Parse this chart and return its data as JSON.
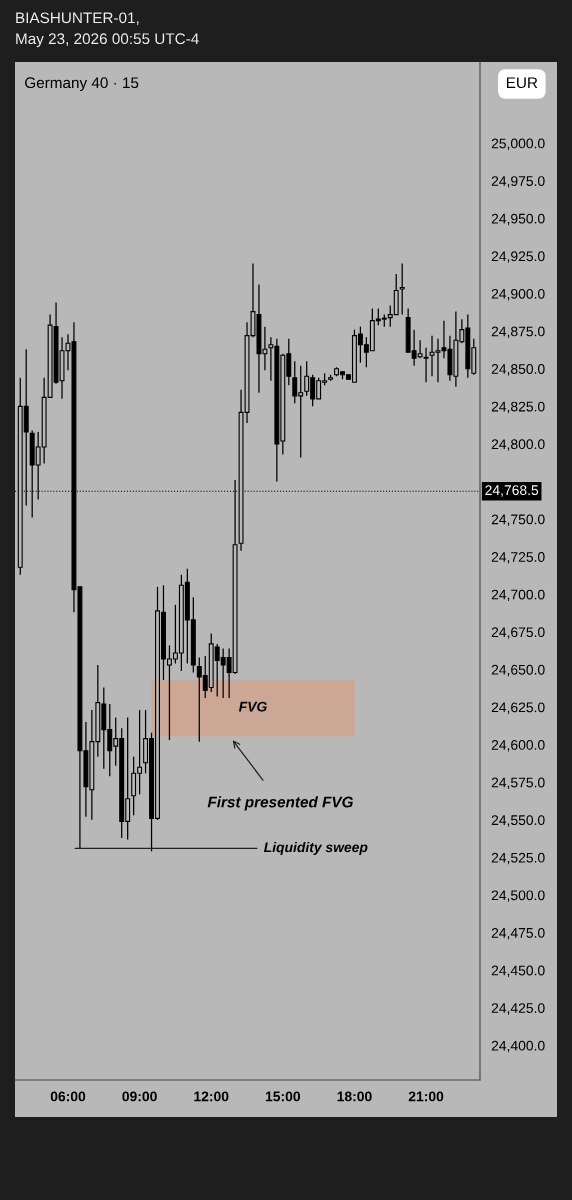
{
  "chart_data": {
    "type": "candlestick",
    "title": "Germany 40 · 15",
    "subtitle": "BIASHUNTER-01,\nMay 23, 2026 00:55 UTC-4",
    "x": [
      4.0,
      4.25,
      4.5,
      4.75,
      5.0,
      5.25,
      5.5,
      5.75,
      6.0,
      6.25,
      6.5,
      6.75,
      7.0,
      7.25,
      7.5,
      7.75,
      8.0,
      8.25,
      8.5,
      8.75,
      9.0,
      9.25,
      9.5,
      9.75,
      10.0,
      10.25,
      10.5,
      10.75,
      11.0,
      11.25,
      11.5,
      11.75,
      12.0,
      12.25,
      12.5,
      12.75,
      13.0,
      13.25,
      13.5,
      13.75,
      14.0,
      14.25,
      14.5,
      14.75,
      15.0,
      15.25,
      15.5,
      15.75,
      16.0,
      16.25,
      16.5,
      16.75,
      17.0,
      17.25,
      17.5,
      17.75,
      18.0,
      18.25,
      18.5,
      18.75,
      19.0,
      19.25,
      19.5,
      19.75,
      20.0,
      20.25,
      20.5,
      20.75,
      21.0,
      21.25,
      21.5,
      21.75,
      22.0,
      22.25,
      22.5,
      22.75,
      23.0
    ],
    "ohlc": [
      [
        24718,
        24844,
        24713,
        24825
      ],
      [
        24825,
        24863,
        24759,
        24808
      ],
      [
        24807,
        24809,
        24751,
        24786
      ],
      [
        24786,
        24808,
        24763,
        24798
      ],
      [
        24798,
        24844,
        24787,
        24831
      ],
      [
        24831,
        24886,
        24831,
        24879
      ],
      [
        24878,
        24894,
        24840,
        24841
      ],
      [
        24842,
        24871,
        24830,
        24862
      ],
      [
        24862,
        24873,
        24849,
        24867
      ],
      [
        24868,
        24881,
        24688,
        24703
      ],
      [
        24705,
        24705,
        24531,
        24596
      ],
      [
        24596,
        24615,
        24552,
        24572
      ],
      [
        24570,
        24623,
        24550,
        24602
      ],
      [
        24602,
        24653,
        24592,
        24628
      ],
      [
        24627,
        24638,
        24584,
        24610
      ],
      [
        24610,
        24627,
        24579,
        24596
      ],
      [
        24599,
        24618,
        24586,
        24604
      ],
      [
        24604,
        24611,
        24538,
        24549
      ],
      [
        24549,
        24618,
        24537,
        24564
      ],
      [
        24566,
        24592,
        24553,
        24581
      ],
      [
        24581,
        24623,
        24567,
        24585
      ],
      [
        24588,
        24623,
        24581,
        24604
      ],
      [
        24604,
        24608,
        24529,
        24551
      ],
      [
        24551,
        24705,
        24550,
        24689
      ],
      [
        24688,
        24706,
        24643,
        24657
      ],
      [
        24653,
        24666,
        24603,
        24657
      ],
      [
        24657,
        24693,
        24654,
        24661
      ],
      [
        24661,
        24713,
        24649,
        24706
      ],
      [
        24708,
        24717,
        24654,
        24683
      ],
      [
        24683,
        24698,
        24648,
        24653
      ],
      [
        24652,
        24658,
        24602,
        24645
      ],
      [
        24646,
        24659,
        24631,
        24636
      ],
      [
        24638,
        24674,
        24635,
        24667
      ],
      [
        24665,
        24667,
        24632,
        24656
      ],
      [
        24658,
        24664,
        24631,
        24653
      ],
      [
        24658,
        24664,
        24631,
        24648
      ],
      [
        24648,
        24776,
        24647,
        24733
      ],
      [
        24734,
        24836,
        24729,
        24821
      ],
      [
        24821,
        24881,
        24814,
        24872
      ],
      [
        24872,
        24920,
        24871,
        24888
      ],
      [
        24886,
        24906,
        24834,
        24860
      ],
      [
        24860,
        24878,
        24849,
        24863
      ],
      [
        24864,
        24871,
        24842,
        24866
      ],
      [
        24865,
        24870,
        24775,
        24800
      ],
      [
        24802,
        24860,
        24793,
        24859
      ],
      [
        24860,
        24870,
        24839,
        24845
      ],
      [
        24844,
        24855,
        24827,
        24832
      ],
      [
        24832,
        24852,
        24791,
        24834
      ],
      [
        24835,
        24855,
        24832,
        24845
      ],
      [
        24844,
        24846,
        24825,
        24830
      ],
      [
        24830,
        24844,
        24830,
        24842
      ],
      [
        24841,
        24847,
        24839,
        24842
      ],
      [
        24843,
        24846,
        24842,
        24844
      ],
      [
        24846,
        24851,
        24845,
        24850
      ],
      [
        24848,
        24848,
        24843,
        24846
      ],
      [
        24846,
        24846,
        24843,
        24843
      ],
      [
        24841,
        24876,
        24841,
        24872
      ],
      [
        24873,
        24878,
        24854,
        24866
      ],
      [
        24866,
        24871,
        24851,
        24861
      ],
      [
        24862,
        24890,
        24862,
        24882
      ],
      [
        24883,
        24890,
        24879,
        24882
      ],
      [
        24883,
        24886,
        24878,
        24883
      ],
      [
        24884,
        24892,
        24878,
        24886
      ],
      [
        24886,
        24913,
        24886,
        24902
      ],
      [
        24903,
        24920,
        24886,
        24904
      ],
      [
        24884,
        24890,
        24861,
        24861
      ],
      [
        24862,
        24876,
        24852,
        24857
      ],
      [
        24858,
        24869,
        24857,
        24860
      ],
      [
        24857,
        24864,
        24841,
        24857
      ],
      [
        24859,
        24872,
        24845,
        24861
      ],
      [
        24861,
        24870,
        24841,
        24862
      ],
      [
        24864,
        24882,
        24857,
        24862
      ],
      [
        24863,
        24872,
        24842,
        24846
      ],
      [
        24845,
        24888,
        24838,
        24869
      ],
      [
        24868,
        24883,
        24867,
        24876
      ],
      [
        24877,
        24886,
        24844,
        24850
      ],
      [
        24847,
        24870,
        24846,
        24864
      ]
    ],
    "color": "#000000",
    "xlim": [
      3.78,
      23.26
    ],
    "ylim": [
      24377,
      25054
    ],
    "xticks": [
      {
        "value": 6,
        "label": "06:00"
      },
      {
        "value": 9,
        "label": "09:00"
      },
      {
        "value": 12,
        "label": "12:00"
      },
      {
        "value": 15,
        "label": "15:00"
      },
      {
        "value": 18,
        "label": "18:00"
      },
      {
        "value": 21,
        "label": "21:00"
      }
    ],
    "yticks": [
      {
        "value": 24400,
        "label": "24,400.0"
      },
      {
        "value": 24425,
        "label": "24,425.0"
      },
      {
        "value": 24450,
        "label": "24,450.0"
      },
      {
        "value": 24475,
        "label": "24,475.0"
      },
      {
        "value": 24500,
        "label": "24,500.0"
      },
      {
        "value": 24525,
        "label": "24,525.0"
      },
      {
        "value": 24550,
        "label": "24,550.0"
      },
      {
        "value": 24575,
        "label": "24,575.0"
      },
      {
        "value": 24600,
        "label": "24,600.0"
      },
      {
        "value": 24625,
        "label": "24,625.0"
      },
      {
        "value": 24650,
        "label": "24,650.0"
      },
      {
        "value": 24675,
        "label": "24,675.0"
      },
      {
        "value": 24700,
        "label": "24,700.0"
      },
      {
        "value": 24725,
        "label": "24,725.0"
      },
      {
        "value": 24750,
        "label": "24,750.0"
      },
      {
        "value": 24800,
        "label": "24,800.0"
      },
      {
        "value": 24825,
        "label": "24,825.0"
      },
      {
        "value": 24850,
        "label": "24,850.0"
      },
      {
        "value": 24875,
        "label": "24,875.0"
      },
      {
        "value": 24900,
        "label": "24,900.0"
      },
      {
        "value": 24925,
        "label": "24,925.0"
      },
      {
        "value": 24950,
        "label": "24,950.0"
      },
      {
        "value": 24975,
        "label": "24,975.0"
      },
      {
        "value": 25000,
        "label": "25,000.0"
      }
    ],
    "ref_lines": [
      {
        "axis": "y",
        "value": 24768.5,
        "label": "24,768.5",
        "color": "#000000",
        "line_style": "dotted"
      }
    ],
    "bands": [
      {
        "axis": "y",
        "from": 24606,
        "to": 24643,
        "label": "FVG",
        "color": "#cfa38e"
      }
    ],
    "annotations": [
      "EUR",
      {
        "text": "First presented FVG",
        "x": 12.9,
        "y": 24603
      },
      {
        "text": "Liquidity sweep",
        "x": 6.3,
        "y": 24531
      }
    ],
    "grid": false
  }
}
